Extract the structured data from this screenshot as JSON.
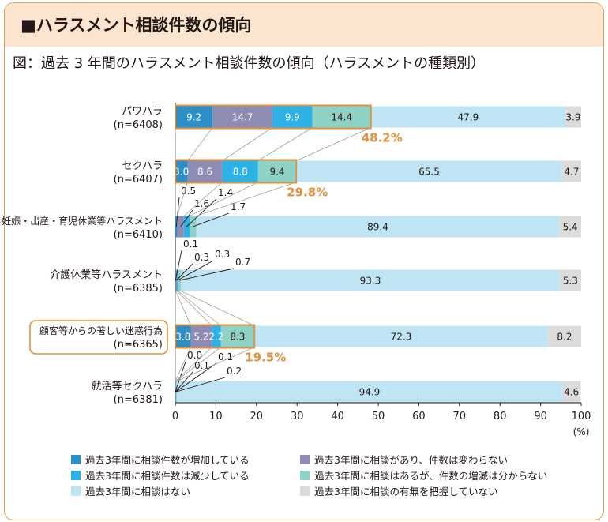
{
  "header": {
    "title": "■ハラスメント相談件数の傾向"
  },
  "figure_caption": "図：過去 3 年間のハラスメント相談件数の傾向（ハラスメントの種類別）",
  "colors": {
    "increase": "#2e8fc6",
    "unchanged": "#8e8cb5",
    "decrease": "#2cb2e6",
    "unknown_change": "#8ed1c6",
    "none": "#bfe4f4",
    "not_grasped": "#dcdcdd",
    "highlight": "#e2913c"
  },
  "chart_data": {
    "type": "bar",
    "orientation": "horizontal",
    "stacked": true,
    "title": "",
    "xlabel": "(%)",
    "ylabel": "",
    "xlim": [
      0,
      100
    ],
    "x_ticks": [
      "0",
      "10",
      "20",
      "30",
      "40",
      "50",
      "60",
      "70",
      "80",
      "90",
      "100"
    ],
    "x_unit": "(%)",
    "categories": [
      {
        "name": "パワハラ",
        "n": "(n=6408)",
        "highlighted_label": false
      },
      {
        "name": "セクハラ",
        "n": "(n=6407)",
        "highlighted_label": false
      },
      {
        "name": "妊娠・出産・育児休業等ハラスメント",
        "n": "(n=6410)",
        "highlighted_label": false
      },
      {
        "name": "介護休業等ハラスメント",
        "n": "(n=6385)",
        "highlighted_label": false
      },
      {
        "name": "顧客等からの著しい迷惑行為",
        "n": "(n=6365)",
        "highlighted_label": true
      },
      {
        "name": "就活等セクハラ",
        "n": "(n=6381)",
        "highlighted_label": false
      }
    ],
    "series": [
      {
        "name": "過去3年間に相談件数が増加している",
        "color_key": "increase",
        "values": [
          9.2,
          3.0,
          0.5,
          0.1,
          3.8,
          0.0
        ],
        "labels": [
          "9.2",
          "3.0",
          "0.5",
          "0.1",
          "3.8",
          "0.0"
        ]
      },
      {
        "name": "過去3年間に相談があり、件数は変わらない",
        "color_key": "unchanged",
        "values": [
          14.7,
          8.6,
          1.6,
          0.3,
          5.2,
          0.1
        ],
        "labels": [
          "14.7",
          "8.6",
          "1.6",
          "0.3",
          "5.2",
          "0.1"
        ]
      },
      {
        "name": "過去3年間に相談件数は減少している",
        "color_key": "decrease",
        "values": [
          9.9,
          8.8,
          1.4,
          0.3,
          2.2,
          0.1
        ],
        "labels": [
          "9.9",
          "8.8",
          "1.4",
          "0.3",
          "2.2",
          "0.1"
        ]
      },
      {
        "name": "過去3年間に相談はあるが、件数の増減は分からない",
        "color_key": "unknown_change",
        "values": [
          14.4,
          9.4,
          1.7,
          0.7,
          8.3,
          0.2
        ],
        "labels": [
          "14.4",
          "9.4",
          "1.7",
          "0.7",
          "8.3",
          "0.2"
        ]
      },
      {
        "name": "過去3年間に相談はない",
        "color_key": "none",
        "values": [
          47.9,
          65.5,
          89.4,
          93.3,
          72.3,
          94.9
        ],
        "labels": [
          "47.9",
          "65.5",
          "89.4",
          "93.3",
          "72.3",
          "94.9"
        ]
      },
      {
        "name": "過去3年間に相談の有無を把握していない",
        "color_key": "not_grasped",
        "values": [
          3.9,
          4.7,
          5.4,
          5.3,
          8.2,
          4.6
        ],
        "labels": [
          "3.9",
          "4.7",
          "5.4",
          "5.3",
          "8.2",
          "4.6"
        ]
      }
    ],
    "totals": [
      {
        "category_index": 0,
        "label": "48.2%",
        "value": 48.2
      },
      {
        "category_index": 1,
        "label": "29.8%",
        "value": 29.8
      },
      {
        "category_index": 4,
        "label": "19.5%",
        "value": 19.5
      }
    ],
    "legend": {
      "placement": "bottom",
      "columns": 2,
      "items": [
        "過去3年間に相談件数が増加している",
        "過去3年間に相談があり、件数は変わらない",
        "過去3年間に相談件数は減少している",
        "過去3年間に相談はあるが、件数の増減は分からない",
        "過去3年間に相談はない",
        "過去3年間に相談の有無を把握していない"
      ]
    },
    "grid": false
  }
}
